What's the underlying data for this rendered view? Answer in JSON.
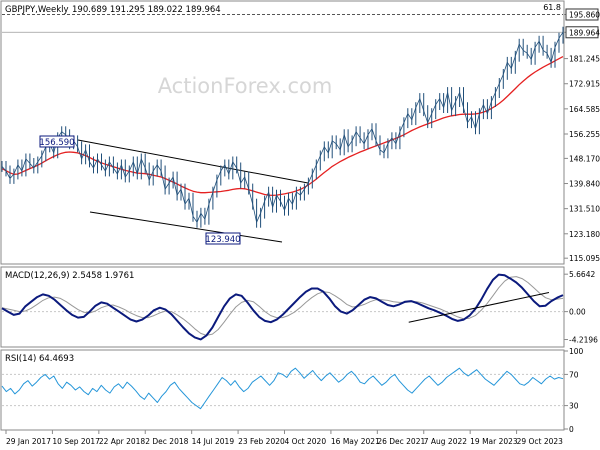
{
  "header": {
    "title": "GBPJPY,Weekly",
    "ohlc": "190.689 191.295 189.022 189.964"
  },
  "watermark": "ActionForex.com",
  "corner_label": "61.8",
  "colors": {
    "price": "#1f4e79",
    "ma": "#e52121",
    "macd": "#0b1a7d",
    "signal": "#999999",
    "rsi": "#2596d9",
    "box": "#0b1a7d",
    "grid": "#c8c8c8"
  },
  "chart_data": [
    {
      "type": "line",
      "title": "GBPJPY,Weekly",
      "ylim": [
        113.5,
        200
      ],
      "y_ticks": [
        115.095,
        123.18,
        131.51,
        139.84,
        148.17,
        156.255,
        164.585,
        172.915,
        181.245,
        189.964,
        195.86
      ],
      "y_tick_labels": [
        "115.095",
        "123.180",
        "131.510",
        "139.840",
        "148.170",
        "156.255",
        "164.585",
        "172.915",
        "181.245",
        "189.964",
        "195.860"
      ],
      "boxed_labels": [
        "189.964",
        "195.860"
      ],
      "annotations": [
        "156.590",
        "123.940"
      ],
      "series": [
        {
          "values": [
            145.5,
            144,
            141.5,
            143,
            146,
            144,
            148,
            146.5,
            145,
            147,
            149,
            152,
            153,
            150,
            155,
            157,
            156,
            153,
            154,
            152,
            148,
            151,
            147,
            145,
            148,
            146,
            144,
            147,
            145,
            143,
            146,
            142,
            144,
            147,
            143,
            148,
            145,
            141,
            144,
            146,
            144,
            138,
            140,
            142,
            136,
            138,
            133,
            135,
            129,
            127,
            130,
            128,
            133,
            137,
            141,
            144,
            146,
            143,
            147,
            145,
            140,
            142,
            138,
            133,
            127,
            130,
            134,
            137,
            132,
            136,
            134,
            131,
            135,
            133,
            137,
            136,
            138,
            140,
            143,
            146,
            149,
            152,
            150,
            154,
            153,
            151,
            156,
            152,
            154,
            157,
            155,
            153,
            156,
            158,
            154,
            151,
            150,
            153,
            155,
            153,
            157,
            160,
            163,
            161,
            165,
            168,
            164,
            160,
            163,
            166,
            168,
            165,
            170,
            164,
            167,
            170,
            165,
            160,
            162,
            158,
            163,
            166,
            163,
            167,
            170,
            173,
            176,
            180,
            178,
            182,
            186,
            184,
            183,
            181,
            185,
            187,
            184,
            183,
            180,
            185,
            188,
            190
          ]
        },
        {
          "values": [
            144.8,
            144.1,
            143.4,
            142.9,
            143.0,
            143.6,
            144.2,
            144.8,
            145.3,
            145.9,
            146.6,
            147.4,
            148.1,
            148.8,
            149.4,
            149.9,
            150.2,
            150.3,
            150.2,
            150.0,
            149.6,
            149.1,
            148.5,
            147.8,
            147.2,
            146.7,
            146.2,
            145.8,
            145.4,
            145.0,
            144.6,
            144.2,
            143.9,
            143.6,
            143.3,
            143.2,
            143.1,
            142.9,
            142.6,
            142.3,
            142.0,
            141.5,
            140.9,
            140.3,
            139.7,
            139.0,
            138.4,
            137.8,
            137.3,
            137.0,
            136.8,
            136.8,
            136.9,
            137.0,
            137.1,
            137.2,
            137.4,
            137.6,
            137.9,
            138.1,
            138.2,
            138.1,
            137.8,
            137.4,
            137.0,
            136.6,
            136.2,
            136.0,
            135.9,
            136.0,
            136.2,
            136.4,
            136.7,
            137.0,
            137.4,
            137.9,
            138.6,
            139.4,
            140.3,
            141.3,
            142.4,
            143.5,
            144.5,
            145.5,
            146.3,
            147.1,
            147.8,
            148.5,
            149.1,
            149.7,
            150.3,
            150.8,
            151.3,
            151.8,
            152.3,
            152.8,
            153.3,
            153.8,
            154.3,
            154.8,
            155.4,
            156.0,
            156.7,
            157.4,
            158.0,
            158.6,
            159.1,
            159.6,
            160.1,
            160.6,
            161.1,
            161.6,
            162.0,
            162.3,
            162.5,
            162.7,
            162.8,
            162.8,
            162.8,
            162.9,
            163.1,
            163.5,
            164.0,
            164.7,
            165.5,
            166.4,
            167.5,
            168.7,
            170.0,
            171.3,
            172.6,
            173.8,
            174.9,
            175.9,
            176.8,
            177.6,
            178.4,
            179.1,
            179.8,
            180.5,
            181.2,
            181.9
          ]
        }
      ]
    },
    {
      "type": "line",
      "title": "MACD(12,26,9) 2.5458 1.9761",
      "ylim": [
        -5.2,
        6.6
      ],
      "y_ticks": [
        5.6642,
        0.0,
        -4.2196
      ],
      "y_tick_labels": [
        "5.6642",
        "0.00",
        "-4.2196"
      ],
      "series": [
        {
          "values": [
            0.5,
            0.0,
            -0.5,
            -0.3,
            0.8,
            1.5,
            2.2,
            2.6,
            2.4,
            1.8,
            1.0,
            0.2,
            -0.5,
            -0.9,
            -0.8,
            0.0,
            0.9,
            1.4,
            1.2,
            0.6,
            0.0,
            -0.6,
            -1.2,
            -1.5,
            -1.2,
            -0.6,
            0.2,
            0.6,
            0.3,
            -0.4,
            -1.4,
            -2.4,
            -3.3,
            -3.9,
            -4.2,
            -3.6,
            -2.4,
            -0.8,
            0.8,
            2.0,
            2.6,
            2.4,
            1.4,
            0.2,
            -0.8,
            -1.4,
            -1.6,
            -1.2,
            -0.5,
            0.4,
            1.3,
            2.2,
            3.0,
            3.5,
            3.5,
            3.0,
            2.0,
            0.8,
            0.0,
            -0.3,
            0.2,
            1.0,
            1.8,
            2.2,
            2.0,
            1.5,
            1.0,
            0.8,
            1.1,
            1.5,
            1.6,
            1.3,
            0.9,
            0.5,
            0.2,
            -0.2,
            -0.6,
            -1.1,
            -1.4,
            -1.2,
            -0.6,
            0.4,
            1.8,
            3.4,
            4.8,
            5.6,
            5.5,
            5.0,
            4.4,
            3.6,
            2.6,
            1.6,
            0.8,
            0.9,
            1.6,
            2.1,
            2.5
          ]
        },
        {
          "values": [
            0.6,
            0.4,
            0.2,
            0.0,
            0.1,
            0.5,
            1.1,
            1.7,
            2.1,
            2.2,
            2.0,
            1.5,
            0.9,
            0.3,
            -0.1,
            -0.2,
            0.1,
            0.6,
            0.9,
            1.0,
            0.7,
            0.3,
            -0.2,
            -0.6,
            -0.9,
            -0.9,
            -0.6,
            -0.2,
            0.1,
            0.0,
            -0.5,
            -1.1,
            -1.8,
            -2.6,
            -3.3,
            -3.6,
            -3.4,
            -2.7,
            -1.6,
            -0.4,
            0.7,
            1.4,
            1.7,
            1.5,
            0.8,
            0.0,
            -0.6,
            -0.9,
            -0.9,
            -0.6,
            -0.1,
            0.6,
            1.4,
            2.1,
            2.7,
            3.0,
            2.9,
            2.4,
            1.8,
            1.1,
            0.7,
            0.8,
            1.1,
            1.5,
            1.8,
            1.8,
            1.7,
            1.5,
            1.4,
            1.4,
            1.5,
            1.5,
            1.3,
            1.0,
            0.7,
            0.4,
            0.0,
            -0.4,
            -0.8,
            -1.1,
            -1.0,
            -0.6,
            0.2,
            1.2,
            2.4,
            3.6,
            4.6,
            5.2,
            5.3,
            5.0,
            4.4,
            3.6,
            2.8,
            2.1,
            1.8,
            1.9,
            2.0
          ]
        }
      ],
      "trendline": {
        "x": [
          0.725,
          0.975
        ],
        "y": [
          -1.6,
          2.9
        ]
      }
    },
    {
      "type": "line",
      "title": "RSI(14) 64.4693",
      "ylim": [
        0,
        100
      ],
      "y_ticks": [
        100,
        70,
        30,
        0
      ],
      "y_tick_labels": [
        "100",
        "70",
        "30",
        "0"
      ],
      "series": [
        {
          "values": [
            55,
            48,
            52,
            45,
            50,
            58,
            62,
            55,
            60,
            66,
            70,
            64,
            68,
            58,
            52,
            60,
            56,
            50,
            54,
            48,
            44,
            52,
            48,
            56,
            50,
            46,
            54,
            58,
            52,
            60,
            55,
            49,
            42,
            38,
            46,
            40,
            34,
            42,
            48,
            56,
            60,
            52,
            46,
            40,
            34,
            30,
            26,
            34,
            42,
            50,
            58,
            66,
            62,
            56,
            62,
            54,
            48,
            52,
            60,
            64,
            68,
            62,
            56,
            62,
            72,
            70,
            66,
            74,
            78,
            72,
            65,
            70,
            75,
            68,
            62,
            68,
            72,
            66,
            60,
            64,
            70,
            74,
            68,
            60,
            58,
            64,
            68,
            62,
            56,
            60,
            66,
            70,
            62,
            56,
            50,
            46,
            52,
            58,
            64,
            68,
            62,
            56,
            60,
            66,
            70,
            74,
            78,
            72,
            68,
            72,
            76,
            70,
            64,
            60,
            56,
            62,
            68,
            74,
            70,
            64,
            58,
            56,
            60,
            66,
            62,
            58,
            64,
            68,
            64,
            66,
            64.5
          ]
        }
      ]
    }
  ],
  "x_labels": [
    "29 Jan 2017",
    "10 Sep 2017",
    "22 Apr 2018",
    "2 Dec 2018",
    "14 Jul 2019",
    "23 Feb 2020",
    "4 Oct 2020",
    "16 May 2021",
    "26 Dec 2021",
    "7 Aug 2022",
    "19 Mar 2023",
    "29 Oct 2023"
  ]
}
